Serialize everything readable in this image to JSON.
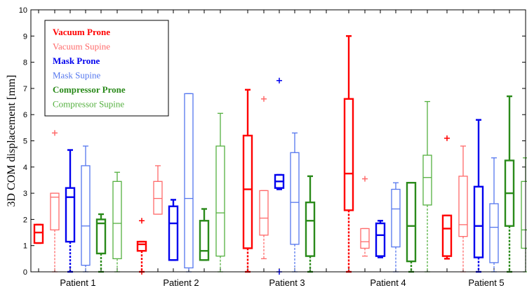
{
  "chart_data": {
    "type": "box",
    "ylabel": "3D COM displacement [mm]",
    "ylim": [
      0,
      10
    ],
    "yticks": [
      0,
      1,
      2,
      3,
      4,
      5,
      6,
      7,
      8,
      9,
      10
    ],
    "categories": [
      "Patient 1",
      "Patient 2",
      "Patient 3",
      "Patient 4",
      "Patient 5"
    ],
    "legend_position": "top-left",
    "series": [
      {
        "name": "Vacuum Prone",
        "color": "#ff0000",
        "bold": true,
        "boxes": [
          {
            "min": 1.1,
            "q1": 1.1,
            "median": 1.5,
            "q3": 1.8,
            "max": 1.8,
            "outliers": []
          },
          {
            "min": 0.0,
            "q1": 0.8,
            "median": 1.05,
            "q3": 1.15,
            "max": 1.15,
            "outliers": [
              0.0,
              1.95
            ]
          },
          {
            "min": 0.0,
            "q1": 0.9,
            "median": 3.15,
            "q3": 5.2,
            "max": 6.95,
            "outliers": []
          },
          {
            "min": 0.0,
            "q1": 2.35,
            "median": 3.75,
            "q3": 6.6,
            "max": 9.0,
            "outliers": []
          },
          {
            "min": 0.5,
            "q1": 0.6,
            "median": 1.65,
            "q3": 2.15,
            "max": 2.15,
            "outliers": [
              5.1
            ]
          }
        ]
      },
      {
        "name": "Vacuum Supine",
        "color": "#ff6a6a",
        "bold": false,
        "boxes": [
          {
            "min": 0.0,
            "q1": 1.6,
            "median": 2.85,
            "q3": 3.0,
            "max": 3.0,
            "outliers": [
              5.3
            ]
          },
          {
            "min": 2.2,
            "q1": 2.2,
            "median": 2.8,
            "q3": 3.45,
            "max": 4.05,
            "outliers": []
          },
          {
            "min": 0.5,
            "q1": 1.4,
            "median": 2.05,
            "q3": 3.1,
            "max": 3.1,
            "outliers": [
              6.6
            ]
          },
          {
            "min": 0.6,
            "q1": 0.9,
            "median": 1.15,
            "q3": 1.65,
            "max": 1.65,
            "outliers": [
              3.55
            ]
          },
          {
            "min": 0.0,
            "q1": 1.35,
            "median": 1.8,
            "q3": 3.65,
            "max": 4.8,
            "outliers": []
          }
        ]
      },
      {
        "name": "Mask Prone",
        "color": "#0000ee",
        "bold": true,
        "boxes": [
          {
            "min": 0.0,
            "q1": 1.15,
            "median": 2.85,
            "q3": 3.2,
            "max": 4.65,
            "outliers": []
          },
          {
            "min": 0.45,
            "q1": 0.45,
            "median": 1.85,
            "q3": 2.5,
            "max": 2.75,
            "outliers": []
          },
          {
            "min": 3.15,
            "q1": 3.2,
            "median": 3.45,
            "q3": 3.7,
            "max": 3.7,
            "outliers": [
              7.3,
              0.0
            ]
          },
          {
            "min": 0.55,
            "q1": 0.6,
            "median": 1.4,
            "q3": 1.85,
            "max": 1.95,
            "outliers": []
          },
          {
            "min": 0.0,
            "q1": 0.55,
            "median": 1.75,
            "q3": 3.25,
            "max": 5.8,
            "outliers": []
          }
        ]
      },
      {
        "name": "Mask Supine",
        "color": "#5577ee",
        "bold": false,
        "boxes": [
          {
            "min": 0.0,
            "q1": 0.25,
            "median": 1.75,
            "q3": 4.05,
            "max": 4.8,
            "outliers": []
          },
          {
            "min": 0.0,
            "q1": 0.15,
            "median": 2.8,
            "q3": 6.8,
            "max": 6.8,
            "outliers": []
          },
          {
            "min": 0.0,
            "q1": 1.05,
            "median": 2.65,
            "q3": 4.55,
            "max": 5.3,
            "outliers": []
          },
          {
            "min": 0.0,
            "q1": 0.95,
            "median": 2.4,
            "q3": 3.15,
            "max": 3.4,
            "outliers": []
          },
          {
            "min": 0.0,
            "q1": 0.35,
            "median": 1.7,
            "q3": 2.6,
            "max": 4.35,
            "outliers": []
          }
        ]
      },
      {
        "name": "Compressor Prone",
        "color": "#2a8a1a",
        "bold": true,
        "boxes": [
          {
            "min": 0.0,
            "q1": 0.7,
            "median": 1.85,
            "q3": 2.0,
            "max": 2.2,
            "outliers": []
          },
          {
            "min": 0.45,
            "q1": 0.45,
            "median": 0.8,
            "q3": 1.95,
            "max": 2.4,
            "outliers": []
          },
          {
            "min": 0.0,
            "q1": 0.6,
            "median": 1.95,
            "q3": 2.65,
            "max": 3.65,
            "outliers": []
          },
          {
            "min": 0.0,
            "q1": 0.4,
            "median": 1.75,
            "q3": 3.4,
            "max": 3.4,
            "outliers": []
          },
          {
            "min": 0.0,
            "q1": 1.75,
            "median": 3.0,
            "q3": 4.25,
            "max": 6.7,
            "outliers": []
          }
        ]
      },
      {
        "name": "Compressor Supine",
        "color": "#55b040",
        "bold": false,
        "boxes": [
          {
            "min": 0.0,
            "q1": 0.5,
            "median": 1.85,
            "q3": 3.45,
            "max": 3.8,
            "outliers": []
          },
          {
            "min": 0.0,
            "q1": 0.6,
            "median": 2.25,
            "q3": 4.8,
            "max": 6.05,
            "outliers": []
          },
          {
            "min": 0.0,
            "q1": 0.0,
            "median": 0.0,
            "q3": 0.0,
            "max": 0.0,
            "outliers": []
          },
          {
            "min": 0.0,
            "q1": 2.55,
            "median": 3.6,
            "q3": 4.45,
            "max": 6.5,
            "outliers": []
          },
          {
            "min": 0.0,
            "q1": 0.9,
            "median": 1.6,
            "q3": 3.45,
            "max": 4.35,
            "outliers": []
          }
        ]
      }
    ]
  }
}
